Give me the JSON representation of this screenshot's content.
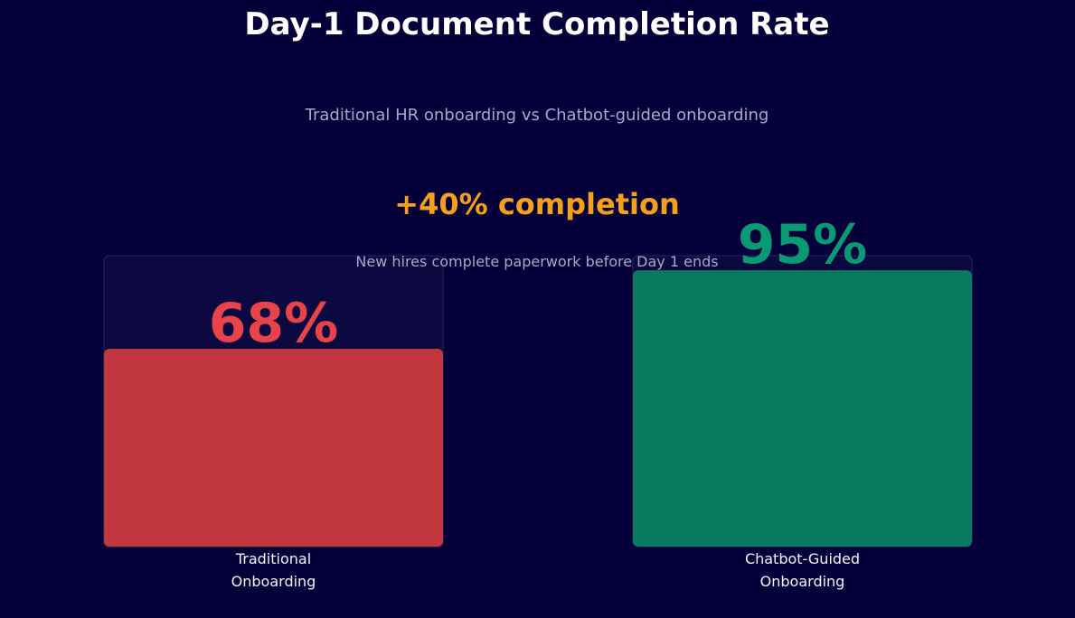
{
  "chart_data": {
    "type": "bar",
    "title": "Day-1 Document Completion Rate",
    "subtitle": "Traditional HR onboarding vs Chatbot-guided onboarding",
    "annotation": "+40% completion",
    "annotation_subtext": "New hires complete paperwork before Day 1 ends",
    "categories": [
      "Traditional\nOnboarding",
      "Chatbot-Guided\nOnboarding"
    ],
    "values": [
      68,
      95
    ],
    "value_labels": [
      "68%",
      "95%"
    ],
    "colors": [
      "#c0373f",
      "#077a60"
    ],
    "label_colors": [
      "#e8434a",
      "#0a9a73"
    ],
    "annotation_color": "#f5a01a",
    "ylim": [
      0,
      100
    ]
  }
}
